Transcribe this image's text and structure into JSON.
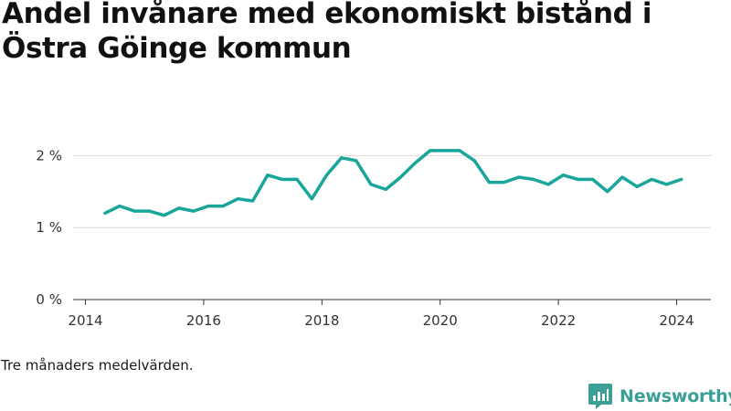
{
  "title": "Andel invånare med ekonomiskt bistånd i Östra Göinge kommun",
  "note": "Tre månaders medelvärden.",
  "brand": {
    "name": "Newsworthy",
    "color": "#3a9f97",
    "icon": "newsworthy-logo-icon"
  },
  "colors": {
    "line": "#18a59a",
    "grid": "#d9d9d9",
    "axis": "#333333"
  },
  "chart_data": {
    "type": "line",
    "title": "Andel invånare med ekonomiskt bistånd i Östra Göinge kommun",
    "xlabel": "",
    "ylabel": "",
    "xlim": [
      2014,
      2024.6
    ],
    "ylim": [
      0,
      2.5
    ],
    "x_ticks": [
      2014,
      2016,
      2018,
      2020,
      2022,
      2024
    ],
    "x_tick_labels": [
      "2014",
      "2016",
      "2018",
      "2020",
      "2022",
      "2024"
    ],
    "y_ticks": [
      0,
      1,
      2
    ],
    "y_tick_labels": [
      "0 %",
      "1 %",
      "2 %"
    ],
    "grid": "horizontal",
    "legend": "none",
    "x": [
      2014.33,
      2014.58,
      2014.83,
      2015.08,
      2015.33,
      2015.58,
      2015.83,
      2016.08,
      2016.33,
      2016.58,
      2016.83,
      2017.08,
      2017.33,
      2017.58,
      2017.83,
      2018.08,
      2018.33,
      2018.58,
      2018.83,
      2019.08,
      2019.33,
      2019.58,
      2019.83,
      2020.08,
      2020.33,
      2020.58,
      2020.83,
      2021.08,
      2021.33,
      2021.58,
      2021.83,
      2022.08,
      2022.33,
      2022.58,
      2022.83,
      2023.08,
      2023.33,
      2023.58,
      2023.83,
      2024.08
    ],
    "values": [
      1.2,
      1.3,
      1.23,
      1.23,
      1.17,
      1.27,
      1.23,
      1.3,
      1.3,
      1.4,
      1.37,
      1.73,
      1.67,
      1.67,
      1.4,
      1.73,
      1.97,
      1.93,
      1.6,
      1.53,
      1.7,
      1.9,
      2.07,
      2.07,
      2.07,
      1.93,
      1.63,
      1.63,
      1.7,
      1.67,
      1.6,
      1.73,
      1.67,
      1.67,
      1.5,
      1.7,
      1.57,
      1.67,
      1.6,
      1.67
    ]
  }
}
